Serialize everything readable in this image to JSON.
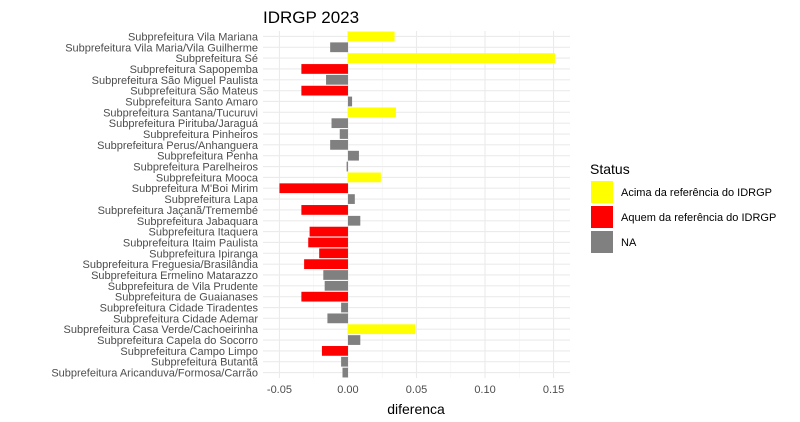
{
  "chart_data": {
    "type": "bar",
    "orientation": "horizontal",
    "title": "IDRGP 2023",
    "xlabel": "diferenca",
    "ylabel": "",
    "xlim": [
      -0.062,
      0.162
    ],
    "xticks": [
      -0.05,
      0.0,
      0.05,
      0.1,
      0.15
    ],
    "xtick_labels": [
      "-0.05",
      "0.00",
      "0.05",
      "0.10",
      "0.15"
    ],
    "grid": true,
    "legend": {
      "title": "Status",
      "position": "right",
      "entries": [
        {
          "label": "Acima da referência do IDRGP",
          "color": "#ffff00"
        },
        {
          "label": "Aquem da referência do IDRGP",
          "color": "#ff0000"
        },
        {
          "label": "NA",
          "color": "#808080"
        }
      ]
    },
    "colors": {
      "Acima": "#ffff00",
      "Aquem": "#ff0000",
      "NA": "#808080"
    },
    "categories": [
      "Subprefeitura Vila Mariana",
      "Subprefeitura Vila Maria/Vila Guilherme",
      "Subprefeitura Sé",
      "Subprefeitura Sapopemba",
      "Subprefeitura São Miguel Paulista",
      "Subprefeitura São Mateus",
      "Subprefeitura Santo Amaro",
      "Subprefeitura Santana/Tucuruvi",
      "Subprefeitura Pirituba/Jaraguá",
      "Subprefeitura Pinheiros",
      "Subprefeitura Perus/Anhanguera",
      "Subprefeitura Penha",
      "Subprefeitura Parelheiros",
      "Subprefeitura Mooca",
      "Subprefeitura M'Boi Mirim",
      "Subprefeitura Lapa",
      "Subprefeitura Jaçanã/Tremembé",
      "Subprefeitura Jabaquara",
      "Subprefeitura Itaquera",
      "Subprefeitura Itaim Paulista",
      "Subprefeitura Ipiranga",
      "Subprefeitura Freguesia/Brasilândia",
      "Subprefeitura Ermelino Matarazzo",
      "Subprefeitura de Vila Prudente",
      "Subprefeitura de Guaianases",
      "Subprefeitura Cidade Tiradentes",
      "Subprefeitura Cidade Ademar",
      "Subprefeitura Casa Verde/Cachoeirinha",
      "Subprefeitura Capela do Socorro",
      "Subprefeitura Campo Limpo",
      "Subprefeitura Butantã",
      "Subprefeitura Aricanduva/Formosa/Carrão"
    ],
    "values": [
      0.034,
      -0.013,
      0.151,
      -0.034,
      -0.016,
      -0.034,
      0.003,
      0.035,
      -0.012,
      -0.006,
      -0.013,
      0.008,
      -0.001,
      0.024,
      -0.05,
      0.005,
      -0.034,
      0.009,
      -0.028,
      -0.029,
      -0.021,
      -0.032,
      -0.018,
      -0.017,
      -0.034,
      -0.005,
      -0.015,
      0.049,
      0.009,
      -0.019,
      -0.005,
      -0.004
    ],
    "status": [
      "Acima",
      "NA",
      "Acima",
      "Aquem",
      "NA",
      "Aquem",
      "NA",
      "Acima",
      "NA",
      "NA",
      "NA",
      "NA",
      "NA",
      "Acima",
      "Aquem",
      "NA",
      "Aquem",
      "NA",
      "Aquem",
      "Aquem",
      "Aquem",
      "Aquem",
      "NA",
      "NA",
      "Aquem",
      "NA",
      "NA",
      "Acima",
      "NA",
      "Aquem",
      "NA",
      "NA"
    ]
  }
}
